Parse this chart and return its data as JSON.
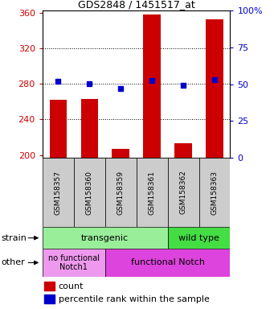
{
  "title": "GDS2848 / 1451517_at",
  "samples": [
    "GSM158357",
    "GSM158360",
    "GSM158359",
    "GSM158361",
    "GSM158362",
    "GSM158363"
  ],
  "counts": [
    262,
    263,
    207,
    358,
    213,
    352
  ],
  "percentile_ranks": [
    283,
    280,
    275,
    284,
    278,
    285
  ],
  "ylim_left": [
    197,
    362
  ],
  "ylim_right": [
    0,
    100
  ],
  "yticks_left": [
    200,
    240,
    280,
    320,
    360
  ],
  "yticks_right": [
    0,
    25,
    50,
    75,
    100
  ],
  "bar_color": "#cc0000",
  "dot_color": "#0000cc",
  "strain_color_transgenic": "#99ee99",
  "strain_color_wildtype": "#44dd44",
  "other_color_nofunc": "#ee99ee",
  "other_color_func": "#dd44dd",
  "tick_label_color_left": "#cc0000",
  "tick_label_color_right": "#0000cc",
  "bg_color": "#ffffff"
}
